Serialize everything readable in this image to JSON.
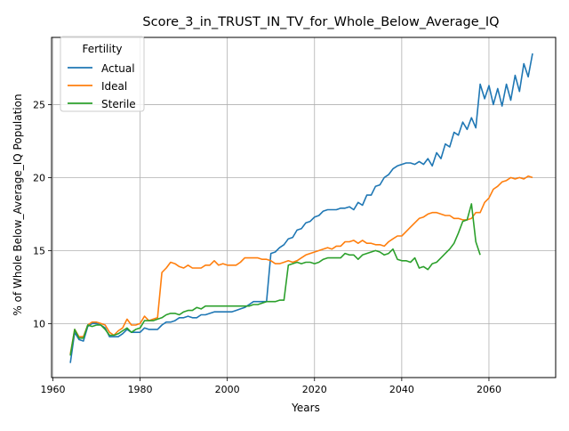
{
  "chart_data": {
    "type": "line",
    "title": "Score_3_in_TRUST_IN_TV_for_Whole_Below_Average_IQ",
    "xlabel": "Years",
    "ylabel": "% of Whole Below_Average_IQ Population",
    "xlim": [
      1959.7,
      2075.3
    ],
    "ylim": [
      6.3,
      29.6
    ],
    "xticks": [
      1960,
      1980,
      2000,
      2020,
      2040,
      2060
    ],
    "yticks": [
      10,
      15,
      20,
      25
    ],
    "grid": true,
    "legend": {
      "title": "Fertility",
      "placement": "top-left"
    },
    "series": [
      {
        "name": "Actual",
        "color": "#1f77b4",
        "points": [
          [
            1964,
            7.3
          ],
          [
            1965,
            9.4
          ],
          [
            1966,
            8.9
          ],
          [
            1967,
            8.8
          ],
          [
            1968,
            9.8
          ],
          [
            1969,
            10.0
          ],
          [
            1970,
            10.0
          ],
          [
            1971,
            9.9
          ],
          [
            1972,
            9.7
          ],
          [
            1973,
            9.1
          ],
          [
            1974,
            9.1
          ],
          [
            1975,
            9.1
          ],
          [
            1976,
            9.3
          ],
          [
            1977,
            9.6
          ],
          [
            1978,
            9.4
          ],
          [
            1979,
            9.4
          ],
          [
            1980,
            9.4
          ],
          [
            1981,
            9.7
          ],
          [
            1982,
            9.6
          ],
          [
            1983,
            9.6
          ],
          [
            1984,
            9.6
          ],
          [
            1985,
            9.9
          ],
          [
            1986,
            10.1
          ],
          [
            1987,
            10.1
          ],
          [
            1988,
            10.2
          ],
          [
            1989,
            10.4
          ],
          [
            1990,
            10.4
          ],
          [
            1991,
            10.5
          ],
          [
            1992,
            10.4
          ],
          [
            1993,
            10.4
          ],
          [
            1994,
            10.6
          ],
          [
            1995,
            10.6
          ],
          [
            1996,
            10.7
          ],
          [
            1997,
            10.8
          ],
          [
            1998,
            10.8
          ],
          [
            1999,
            10.8
          ],
          [
            2000,
            10.8
          ],
          [
            2001,
            10.8
          ],
          [
            2002,
            10.9
          ],
          [
            2003,
            11.0
          ],
          [
            2004,
            11.1
          ],
          [
            2005,
            11.3
          ],
          [
            2006,
            11.5
          ],
          [
            2007,
            11.5
          ],
          [
            2008,
            11.5
          ],
          [
            2009,
            11.5
          ],
          [
            2010,
            14.8
          ],
          [
            2011,
            14.9
          ],
          [
            2012,
            15.2
          ],
          [
            2013,
            15.4
          ],
          [
            2014,
            15.8
          ],
          [
            2015,
            15.9
          ],
          [
            2016,
            16.4
          ],
          [
            2017,
            16.5
          ],
          [
            2018,
            16.9
          ],
          [
            2019,
            17.0
          ],
          [
            2020,
            17.3
          ],
          [
            2021,
            17.4
          ],
          [
            2022,
            17.7
          ],
          [
            2023,
            17.8
          ],
          [
            2024,
            17.8
          ],
          [
            2025,
            17.8
          ],
          [
            2026,
            17.9
          ],
          [
            2027,
            17.9
          ],
          [
            2028,
            18.0
          ],
          [
            2029,
            17.8
          ],
          [
            2030,
            18.3
          ],
          [
            2031,
            18.1
          ],
          [
            2032,
            18.8
          ],
          [
            2033,
            18.8
          ],
          [
            2034,
            19.4
          ],
          [
            2035,
            19.5
          ],
          [
            2036,
            20.0
          ],
          [
            2037,
            20.2
          ],
          [
            2038,
            20.6
          ],
          [
            2039,
            20.8
          ],
          [
            2040,
            20.9
          ],
          [
            2041,
            21.0
          ],
          [
            2042,
            21.0
          ],
          [
            2043,
            20.9
          ],
          [
            2044,
            21.1
          ],
          [
            2045,
            20.9
          ],
          [
            2046,
            21.3
          ],
          [
            2047,
            20.8
          ],
          [
            2048,
            21.7
          ],
          [
            2049,
            21.3
          ],
          [
            2050,
            22.3
          ],
          [
            2051,
            22.1
          ],
          [
            2052,
            23.1
          ],
          [
            2053,
            22.9
          ],
          [
            2054,
            23.8
          ],
          [
            2055,
            23.3
          ],
          [
            2056,
            24.1
          ],
          [
            2057,
            23.4
          ],
          [
            2058,
            26.4
          ],
          [
            2059,
            25.4
          ],
          [
            2060,
            26.3
          ],
          [
            2061,
            25.0
          ],
          [
            2062,
            26.1
          ],
          [
            2063,
            24.9
          ],
          [
            2064,
            26.4
          ],
          [
            2065,
            25.3
          ],
          [
            2066,
            27.0
          ],
          [
            2067,
            25.9
          ],
          [
            2068,
            27.8
          ],
          [
            2069,
            26.9
          ],
          [
            2070,
            28.5
          ]
        ]
      },
      {
        "name": "Ideal",
        "color": "#ff7f0e",
        "points": [
          [
            1964,
            7.9
          ],
          [
            1965,
            9.6
          ],
          [
            1966,
            9.1
          ],
          [
            1967,
            9.1
          ],
          [
            1968,
            9.9
          ],
          [
            1969,
            10.1
          ],
          [
            1970,
            10.1
          ],
          [
            1971,
            10.0
          ],
          [
            1972,
            9.9
          ],
          [
            1973,
            9.4
          ],
          [
            1974,
            9.2
          ],
          [
            1975,
            9.5
          ],
          [
            1976,
            9.7
          ],
          [
            1977,
            10.3
          ],
          [
            1978,
            9.9
          ],
          [
            1979,
            9.9
          ],
          [
            1980,
            10.0
          ],
          [
            1981,
            10.5
          ],
          [
            1982,
            10.2
          ],
          [
            1983,
            10.3
          ],
          [
            1984,
            10.4
          ],
          [
            1985,
            13.5
          ],
          [
            1986,
            13.8
          ],
          [
            1987,
            14.2
          ],
          [
            1988,
            14.1
          ],
          [
            1989,
            13.9
          ],
          [
            1990,
            13.8
          ],
          [
            1991,
            14.0
          ],
          [
            1992,
            13.8
          ],
          [
            1993,
            13.8
          ],
          [
            1994,
            13.8
          ],
          [
            1995,
            14.0
          ],
          [
            1996,
            14.0
          ],
          [
            1997,
            14.3
          ],
          [
            1998,
            14.0
          ],
          [
            1999,
            14.1
          ],
          [
            2000,
            14.0
          ],
          [
            2001,
            14.0
          ],
          [
            2002,
            14.0
          ],
          [
            2003,
            14.2
          ],
          [
            2004,
            14.5
          ],
          [
            2005,
            14.5
          ],
          [
            2006,
            14.5
          ],
          [
            2007,
            14.5
          ],
          [
            2008,
            14.4
          ],
          [
            2009,
            14.4
          ],
          [
            2010,
            14.3
          ],
          [
            2011,
            14.1
          ],
          [
            2012,
            14.1
          ],
          [
            2013,
            14.2
          ],
          [
            2014,
            14.3
          ],
          [
            2015,
            14.2
          ],
          [
            2016,
            14.3
          ],
          [
            2017,
            14.5
          ],
          [
            2018,
            14.7
          ],
          [
            2019,
            14.8
          ],
          [
            2020,
            14.9
          ],
          [
            2021,
            15.0
          ],
          [
            2022,
            15.1
          ],
          [
            2023,
            15.2
          ],
          [
            2024,
            15.1
          ],
          [
            2025,
            15.3
          ],
          [
            2026,
            15.3
          ],
          [
            2027,
            15.6
          ],
          [
            2028,
            15.6
          ],
          [
            2029,
            15.7
          ],
          [
            2030,
            15.5
          ],
          [
            2031,
            15.7
          ],
          [
            2032,
            15.5
          ],
          [
            2033,
            15.5
          ],
          [
            2034,
            15.4
          ],
          [
            2035,
            15.4
          ],
          [
            2036,
            15.3
          ],
          [
            2037,
            15.6
          ],
          [
            2038,
            15.8
          ],
          [
            2039,
            16.0
          ],
          [
            2040,
            16.0
          ],
          [
            2041,
            16.3
          ],
          [
            2042,
            16.6
          ],
          [
            2043,
            16.9
          ],
          [
            2044,
            17.2
          ],
          [
            2045,
            17.3
          ],
          [
            2046,
            17.5
          ],
          [
            2047,
            17.6
          ],
          [
            2048,
            17.6
          ],
          [
            2049,
            17.5
          ],
          [
            2050,
            17.4
          ],
          [
            2051,
            17.4
          ],
          [
            2052,
            17.2
          ],
          [
            2053,
            17.2
          ],
          [
            2054,
            17.1
          ],
          [
            2055,
            17.1
          ],
          [
            2056,
            17.2
          ],
          [
            2057,
            17.6
          ],
          [
            2058,
            17.6
          ],
          [
            2059,
            18.3
          ],
          [
            2060,
            18.6
          ],
          [
            2061,
            19.2
          ],
          [
            2062,
            19.4
          ],
          [
            2063,
            19.7
          ],
          [
            2064,
            19.8
          ],
          [
            2065,
            20.0
          ],
          [
            2066,
            19.9
          ],
          [
            2067,
            20.0
          ],
          [
            2068,
            19.9
          ],
          [
            2069,
            20.1
          ],
          [
            2070,
            20.0
          ]
        ]
      },
      {
        "name": "Sterile",
        "color": "#2ca02c",
        "points": [
          [
            1964,
            7.8
          ],
          [
            1965,
            9.6
          ],
          [
            1966,
            9.0
          ],
          [
            1967,
            9.0
          ],
          [
            1968,
            9.9
          ],
          [
            1969,
            9.8
          ],
          [
            1970,
            9.9
          ],
          [
            1971,
            9.9
          ],
          [
            1972,
            9.6
          ],
          [
            1973,
            9.2
          ],
          [
            1974,
            9.2
          ],
          [
            1975,
            9.3
          ],
          [
            1976,
            9.5
          ],
          [
            1977,
            9.7
          ],
          [
            1978,
            9.4
          ],
          [
            1979,
            9.6
          ],
          [
            1980,
            9.7
          ],
          [
            1981,
            10.2
          ],
          [
            1982,
            10.2
          ],
          [
            1983,
            10.2
          ],
          [
            1984,
            10.3
          ],
          [
            1985,
            10.4
          ],
          [
            1986,
            10.6
          ],
          [
            1987,
            10.7
          ],
          [
            1988,
            10.7
          ],
          [
            1989,
            10.6
          ],
          [
            1990,
            10.8
          ],
          [
            1991,
            10.9
          ],
          [
            1992,
            10.9
          ],
          [
            1993,
            11.1
          ],
          [
            1994,
            11.0
          ],
          [
            1995,
            11.2
          ],
          [
            1996,
            11.2
          ],
          [
            1997,
            11.2
          ],
          [
            1998,
            11.2
          ],
          [
            1999,
            11.2
          ],
          [
            2000,
            11.2
          ],
          [
            2001,
            11.2
          ],
          [
            2002,
            11.2
          ],
          [
            2003,
            11.2
          ],
          [
            2004,
            11.2
          ],
          [
            2005,
            11.2
          ],
          [
            2006,
            11.3
          ],
          [
            2007,
            11.3
          ],
          [
            2008,
            11.4
          ],
          [
            2009,
            11.5
          ],
          [
            2010,
            11.5
          ],
          [
            2011,
            11.5
          ],
          [
            2012,
            11.6
          ],
          [
            2013,
            11.6
          ],
          [
            2014,
            14.0
          ],
          [
            2015,
            14.1
          ],
          [
            2016,
            14.2
          ],
          [
            2017,
            14.1
          ],
          [
            2018,
            14.2
          ],
          [
            2019,
            14.2
          ],
          [
            2020,
            14.1
          ],
          [
            2021,
            14.2
          ],
          [
            2022,
            14.4
          ],
          [
            2023,
            14.5
          ],
          [
            2024,
            14.5
          ],
          [
            2025,
            14.5
          ],
          [
            2026,
            14.5
          ],
          [
            2027,
            14.8
          ],
          [
            2028,
            14.7
          ],
          [
            2029,
            14.7
          ],
          [
            2030,
            14.4
          ],
          [
            2031,
            14.7
          ],
          [
            2032,
            14.8
          ],
          [
            2033,
            14.9
          ],
          [
            2034,
            15.0
          ],
          [
            2035,
            14.9
          ],
          [
            2036,
            14.7
          ],
          [
            2037,
            14.8
          ],
          [
            2038,
            15.1
          ],
          [
            2039,
            14.4
          ],
          [
            2040,
            14.3
          ],
          [
            2041,
            14.3
          ],
          [
            2042,
            14.2
          ],
          [
            2043,
            14.5
          ],
          [
            2044,
            13.8
          ],
          [
            2045,
            13.9
          ],
          [
            2046,
            13.7
          ],
          [
            2047,
            14.1
          ],
          [
            2048,
            14.2
          ],
          [
            2049,
            14.5
          ],
          [
            2050,
            14.8
          ],
          [
            2051,
            15.1
          ],
          [
            2052,
            15.5
          ],
          [
            2053,
            16.2
          ],
          [
            2054,
            17.0
          ],
          [
            2055,
            17.1
          ],
          [
            2056,
            18.2
          ],
          [
            2057,
            15.6
          ],
          [
            2058,
            14.7
          ]
        ]
      }
    ]
  }
}
